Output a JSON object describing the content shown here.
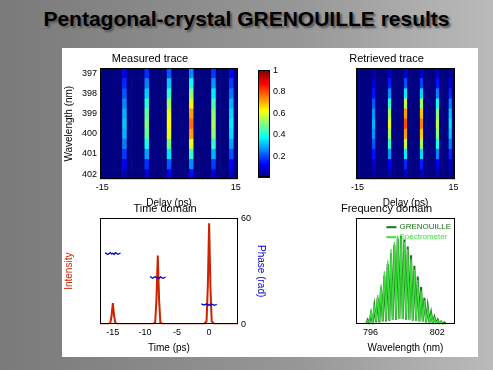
{
  "title": "Pentagonal-crystal GRENOUILLE results",
  "chart_data": [
    {
      "type": "heatmap",
      "title": "Measured trace",
      "xlabel": "Delay (ps)",
      "ylabel": "Wavelength (nm)",
      "grid": false,
      "x": [
        -15,
        -14,
        -13,
        -12,
        -11,
        -10,
        -9,
        -8,
        -7,
        -6,
        -5,
        -4,
        -3,
        -2,
        -1,
        0,
        1,
        2,
        3,
        4,
        5,
        6,
        7,
        8,
        9,
        10,
        11,
        12,
        13,
        14,
        15
      ],
      "y": [
        397,
        397.5,
        398,
        398.5,
        399,
        399.5,
        400,
        400.5,
        401,
        401.5,
        402
      ],
      "cells": [
        [
          0,
          0,
          0,
          0,
          0,
          0.11,
          0,
          0,
          0,
          0,
          0.17,
          0,
          0,
          0,
          0,
          0.21,
          0,
          0,
          0,
          0,
          0.26,
          0,
          0,
          0,
          0,
          0.18,
          0,
          0,
          0,
          0.12,
          0
        ],
        [
          0,
          0,
          0,
          0,
          0,
          0.16,
          0,
          0,
          0,
          0,
          0.25,
          0,
          0,
          0,
          0,
          0.32,
          0,
          0,
          0,
          0,
          0.38,
          0,
          0,
          0,
          0,
          0.27,
          0,
          0,
          0,
          0.18,
          0
        ],
        [
          0,
          0,
          0,
          0,
          0,
          0.21,
          0,
          0,
          0,
          0,
          0.33,
          0,
          0,
          0,
          0,
          0.42,
          0,
          0,
          0,
          0,
          0.51,
          0,
          0,
          0,
          0,
          0.36,
          0,
          0,
          0,
          0.24,
          0
        ],
        [
          0,
          0,
          0,
          0,
          0,
          0.26,
          0,
          0,
          0,
          0,
          0.41,
          0,
          0,
          0,
          0,
          0.53,
          0,
          0,
          0,
          0,
          0.64,
          0,
          0,
          0,
          0,
          0.45,
          0,
          0,
          0,
          0.3,
          0
        ],
        [
          0,
          0,
          0,
          0,
          0,
          0.3,
          0,
          0,
          0,
          0,
          0.47,
          0,
          0,
          0,
          0,
          0.6,
          0,
          0,
          0,
          0,
          0.72,
          0,
          0,
          0,
          0,
          0.51,
          0,
          0,
          0,
          0.34,
          0
        ],
        [
          0,
          0,
          0,
          0,
          0,
          0.32,
          0,
          0,
          0,
          0,
          0.5,
          0,
          0,
          0,
          0,
          0.63,
          0,
          0,
          0,
          0,
          0.77,
          0,
          0,
          0,
          0,
          0.54,
          0,
          0,
          0,
          0.36,
          0
        ],
        [
          0,
          0,
          0,
          0,
          0,
          0.3,
          0,
          0,
          0,
          0,
          0.47,
          0,
          0,
          0,
          0,
          0.6,
          0,
          0,
          0,
          0,
          0.72,
          0,
          0,
          0,
          0,
          0.51,
          0,
          0,
          0,
          0.34,
          0
        ],
        [
          0,
          0,
          0,
          0,
          0,
          0.25,
          0,
          0,
          0,
          0,
          0.39,
          0,
          0,
          0,
          0,
          0.49,
          0,
          0,
          0,
          0,
          0.6,
          0,
          0,
          0,
          0,
          0.42,
          0,
          0,
          0,
          0.28,
          0
        ],
        [
          0,
          0,
          0,
          0,
          0,
          0.18,
          0,
          0,
          0,
          0,
          0.28,
          0,
          0,
          0,
          0,
          0.35,
          0,
          0,
          0,
          0,
          0.43,
          0,
          0,
          0,
          0,
          0.3,
          0,
          0,
          0,
          0.2,
          0
        ],
        [
          0,
          0,
          0,
          0,
          0,
          0.11,
          0,
          0,
          0,
          0,
          0.17,
          0,
          0,
          0,
          0,
          0.21,
          0,
          0,
          0,
          0,
          0.26,
          0,
          0,
          0,
          0,
          0.18,
          0,
          0,
          0,
          0.12,
          0
        ],
        [
          0,
          0,
          0,
          0,
          0,
          0.05,
          0,
          0,
          0,
          0,
          0.08,
          0,
          0,
          0,
          0,
          0.11,
          0,
          0,
          0,
          0,
          0.13,
          0,
          0,
          0,
          0,
          0.09,
          0,
          0,
          0,
          0.06,
          0
        ]
      ],
      "xlim": [
        -15.5,
        15.5
      ],
      "xticks": [
        -15,
        15
      ],
      "ylim": [
        402.25,
        396.75
      ],
      "yticks": [
        397,
        398,
        399,
        400,
        401,
        402
      ],
      "colorbar": {
        "range": [
          0,
          1
        ],
        "ticks": [
          0.2,
          0.4,
          0.6,
          0.8,
          1
        ]
      }
    },
    {
      "type": "heatmap",
      "title": "Retrieved trace",
      "xlabel": "Delay (ps)",
      "grid": false,
      "tick_labels": "x",
      "x": [
        -15,
        -14,
        -13,
        -12,
        -11,
        -10,
        -9,
        -8,
        -7,
        -6,
        -5,
        -4,
        -3,
        -2,
        -1,
        0,
        1,
        2,
        3,
        4,
        5,
        6,
        7,
        8,
        9,
        10,
        11,
        12,
        13,
        14,
        15
      ],
      "y": [
        397,
        397.5,
        398,
        398.5,
        399,
        399.5,
        400,
        400.5,
        401,
        401.5,
        402
      ],
      "cells": [
        [
          0,
          0,
          0,
          0,
          0,
          0.03,
          0,
          0,
          0,
          0,
          0.06,
          0,
          0,
          0,
          0,
          0.08,
          0,
          0,
          0,
          0,
          0.08,
          0,
          0,
          0,
          0,
          0.06,
          0,
          0,
          0,
          0.04,
          0
        ],
        [
          0,
          0,
          0,
          0,
          0,
          0.08,
          0,
          0,
          0,
          0,
          0.15,
          0,
          0,
          0,
          0,
          0.2,
          0,
          0,
          0,
          0,
          0.19,
          0,
          0,
          0,
          0,
          0.14,
          0,
          0,
          0,
          0.09,
          0
        ],
        [
          0,
          0,
          0,
          0,
          0,
          0.14,
          0,
          0,
          0,
          0,
          0.27,
          0,
          0,
          0,
          0,
          0.36,
          0,
          0,
          0,
          0,
          0.34,
          0,
          0,
          0,
          0,
          0.25,
          0,
          0,
          0,
          0.16,
          0
        ],
        [
          0,
          0,
          0,
          0,
          0,
          0.21,
          0,
          0,
          0,
          0,
          0.42,
          0,
          0,
          0,
          0,
          0.56,
          0,
          0,
          0,
          0,
          0.53,
          0,
          0,
          0,
          0,
          0.39,
          0,
          0,
          0,
          0.25,
          0
        ],
        [
          0,
          0,
          0,
          0,
          0,
          0.27,
          0,
          0,
          0,
          0,
          0.54,
          0,
          0,
          0,
          0,
          0.72,
          0,
          0,
          0,
          0,
          0.68,
          0,
          0,
          0,
          0,
          0.5,
          0,
          0,
          0,
          0.32,
          0
        ],
        [
          0,
          0,
          0,
          0,
          0,
          0.3,
          0,
          0,
          0,
          0,
          0.6,
          0,
          0,
          0,
          0,
          0.8,
          0,
          0,
          0,
          0,
          0.75,
          0,
          0,
          0,
          0,
          0.55,
          0,
          0,
          0,
          0.35,
          0
        ],
        [
          0,
          0,
          0,
          0,
          0,
          0.27,
          0,
          0,
          0,
          0,
          0.54,
          0,
          0,
          0,
          0,
          0.72,
          0,
          0,
          0,
          0,
          0.68,
          0,
          0,
          0,
          0,
          0.5,
          0,
          0,
          0,
          0.32,
          0
        ],
        [
          0,
          0,
          0,
          0,
          0,
          0.21,
          0,
          0,
          0,
          0,
          0.42,
          0,
          0,
          0,
          0,
          0.56,
          0,
          0,
          0,
          0,
          0.53,
          0,
          0,
          0,
          0,
          0.39,
          0,
          0,
          0,
          0.25,
          0
        ],
        [
          0,
          0,
          0,
          0,
          0,
          0.14,
          0,
          0,
          0,
          0,
          0.27,
          0,
          0,
          0,
          0,
          0.36,
          0,
          0,
          0,
          0,
          0.34,
          0,
          0,
          0,
          0,
          0.25,
          0,
          0,
          0,
          0.16,
          0
        ],
        [
          0,
          0,
          0,
          0,
          0,
          0.06,
          0,
          0,
          0,
          0,
          0.12,
          0,
          0,
          0,
          0,
          0.16,
          0,
          0,
          0,
          0,
          0.15,
          0,
          0,
          0,
          0,
          0.11,
          0,
          0,
          0,
          0.07,
          0
        ],
        [
          0,
          0,
          0,
          0,
          0,
          0.02,
          0,
          0,
          0,
          0,
          0.05,
          0,
          0,
          0,
          0,
          0.06,
          0,
          0,
          0,
          0,
          0.06,
          0,
          0,
          0,
          0,
          0.04,
          0,
          0,
          0,
          0.03,
          0
        ]
      ],
      "xlim": [
        -15.5,
        15.5
      ],
      "xticks": [
        -15,
        15
      ],
      "ylim": [
        402.25,
        396.75
      ]
    },
    {
      "type": "line",
      "title": "Time domain",
      "xlabel": "Time (ps)",
      "grid": false,
      "x": [
        -17,
        -16.2,
        -15.8,
        -15.4,
        -15.2,
        -15,
        -14.8,
        -14.6,
        -14.2,
        -13.8,
        -12,
        -9.2,
        -8.8,
        -8.4,
        -8.2,
        -8,
        -7.8,
        -7.6,
        -7.2,
        -6.8,
        -4,
        -1.2,
        -0.8,
        -0.4,
        -0.2,
        0,
        0.2,
        0.4,
        0.8,
        1.2,
        4.5
      ],
      "series": [
        {
          "name": "Intensity",
          "color": "#cc2200",
          "values": [
            0,
            0,
            0,
            0.01,
            0.08,
            0.21,
            0.08,
            0.01,
            0,
            0,
            0,
            0,
            0,
            0.02,
            0.25,
            0.68,
            0.25,
            0.02,
            0,
            0,
            0,
            0,
            0,
            0.03,
            0.38,
            1,
            0.38,
            0.03,
            0,
            0,
            0
          ]
        },
        {
          "name": "Phase (rad)",
          "color": "#0000cc",
          "axis": "y2",
          "values": [
            null,
            40.5,
            39.5,
            40.5,
            39.8,
            40.2,
            39.5,
            40.5,
            39.6,
            40.3,
            null,
            27,
            26,
            27,
            26.2,
            26.5,
            25.8,
            26.8,
            26,
            26.6,
            null,
            11.5,
            10.8,
            11.5,
            10.6,
            11.2,
            10.5,
            11.4,
            10.7,
            11.3,
            null
          ]
        }
      ],
      "xlim": [
        -17,
        4.5
      ],
      "xticks": [
        -15,
        -10,
        -5,
        0
      ],
      "ylim": [
        0,
        1.05
      ],
      "yticks": [],
      "y2lim": [
        0,
        60
      ],
      "y2ticks": [
        0,
        60
      ]
    },
    {
      "type": "line",
      "title": "Frequency domain",
      "xlabel": "Wavelength (nm)",
      "grid": false,
      "tick_labels": "x",
      "legend": "top-right",
      "x": [
        795.6,
        795.75,
        795.9,
        796.05,
        796.2,
        796.35,
        796.5,
        796.65,
        796.8,
        796.95,
        797.1,
        797.25,
        797.4,
        797.55,
        797.7,
        797.85,
        798.0,
        798.15,
        798.3,
        798.45,
        798.6,
        798.75,
        798.9,
        799.05,
        799.2,
        799.35,
        799.5,
        799.65,
        799.8,
        799.95,
        800.1,
        800.25,
        800.4,
        800.55,
        800.7,
        800.85,
        801.0,
        801.15,
        801.3,
        801.45,
        801.6,
        801.75,
        801.9,
        802.05,
        802.2,
        802.35,
        802.5,
        802.65,
        802.8
      ],
      "series": [
        {
          "name": "GRENOUILLE",
          "color": "#1b6e1b",
          "values": [
            0,
            0.05,
            0.01,
            0.12,
            0.01,
            0.2,
            0.02,
            0.3,
            0.02,
            0.42,
            0.03,
            0.55,
            0.03,
            0.68,
            0.04,
            0.8,
            0.05,
            0.9,
            0.05,
            0.97,
            0.06,
            1.0,
            0.06,
            0.96,
            0.05,
            0.88,
            0.05,
            0.78,
            0.04,
            0.66,
            0.04,
            0.54,
            0.03,
            0.42,
            0.03,
            0.3,
            0.02,
            0.2,
            0.02,
            0.13,
            0.01,
            0.08,
            0.01,
            0.05,
            0,
            0.03,
            0,
            0.02,
            0
          ]
        },
        {
          "name": "Spectrometer",
          "color": "#3ee03e",
          "values": [
            0,
            0.04,
            0.02,
            0.14,
            0.02,
            0.22,
            0.03,
            0.33,
            0.03,
            0.45,
            0.04,
            0.6,
            0.04,
            0.72,
            0.05,
            0.85,
            0.05,
            0.93,
            0.06,
            1.0,
            0.06,
            0.98,
            0.06,
            0.93,
            0.05,
            0.85,
            0.05,
            0.74,
            0.04,
            0.62,
            0.04,
            0.5,
            0.03,
            0.38,
            0.03,
            0.27,
            0.02,
            0.18,
            0.02,
            0.11,
            0.02,
            0.07,
            0.01,
            0.04,
            0.01,
            0.03,
            0,
            0.01,
            0
          ]
        }
      ],
      "xlim": [
        794.7,
        803.6
      ],
      "xticks": [
        796,
        802
      ],
      "ylim": [
        0,
        1.2
      ]
    }
  ]
}
